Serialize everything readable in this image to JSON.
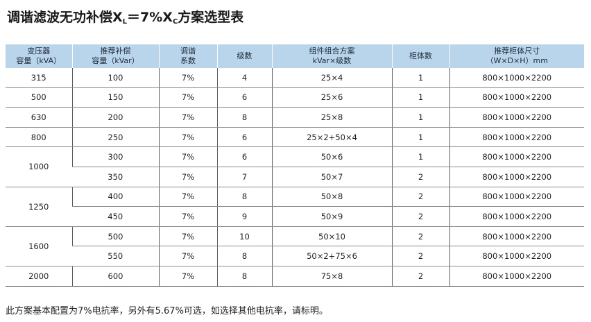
{
  "title": {
    "prefix": "调谐滤波无功补偿X",
    "sub_l": "L",
    "middle": "＝7%X",
    "sub_c": "C",
    "suffix": "方案选型表"
  },
  "table": {
    "headers": [
      [
        "变压器",
        "容量（kVA）"
      ],
      [
        "推荐补偿",
        "容量（kVar）"
      ],
      [
        "调谐",
        "系数"
      ],
      [
        "级数"
      ],
      [
        "组件组合方案",
        "kVar×级数"
      ],
      [
        "柜体数"
      ],
      [
        "推荐柜体尺寸",
        "（W×D×H）mm"
      ]
    ],
    "groups": [
      {
        "capacity": "315",
        "rows": [
          [
            "100",
            "7%",
            "4",
            "25×4",
            "1",
            "800×1000×2200"
          ]
        ]
      },
      {
        "capacity": "500",
        "rows": [
          [
            "150",
            "7%",
            "6",
            "25×6",
            "1",
            "800×1000×2200"
          ]
        ]
      },
      {
        "capacity": "630",
        "rows": [
          [
            "200",
            "7%",
            "8",
            "25×8",
            "1",
            "800×1000×2200"
          ]
        ]
      },
      {
        "capacity": "800",
        "rows": [
          [
            "250",
            "7%",
            "6",
            "25×2+50×4",
            "1",
            "800×1000×2200"
          ]
        ]
      },
      {
        "capacity": "1000",
        "rows": [
          [
            "300",
            "7%",
            "6",
            "50×6",
            "1",
            "800×1000×2200"
          ],
          [
            "350",
            "7%",
            "7",
            "50×7",
            "2",
            "800×1000×2200"
          ]
        ]
      },
      {
        "capacity": "1250",
        "rows": [
          [
            "400",
            "7%",
            "8",
            "50×8",
            "2",
            "800×1000×2200"
          ],
          [
            "450",
            "7%",
            "9",
            "50×9",
            "2",
            "800×1000×2200"
          ]
        ]
      },
      {
        "capacity": "1600",
        "rows": [
          [
            "500",
            "7%",
            "10",
            "50×10",
            "2",
            "800×1000×2200"
          ],
          [
            "550",
            "7%",
            "8",
            "50×2+75×6",
            "2",
            "800×1000×2200"
          ]
        ]
      },
      {
        "capacity": "2000",
        "rows": [
          [
            "600",
            "7%",
            "8",
            "75×8",
            "2",
            "800×1000×2200"
          ]
        ]
      }
    ]
  },
  "note": "此方案基本配置为7%电抗率，另外有5.67%可选，如选择其他电抗率，请标明。"
}
